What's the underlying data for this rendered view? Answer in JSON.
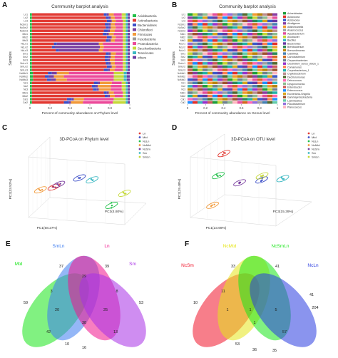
{
  "panels": {
    "A": {
      "label": "A",
      "title": "Community barplot analysis",
      "xlabel": "Percent of community abundance on Phylum level",
      "ylabel": "Samples",
      "ticks": [
        "0",
        "0.2",
        "0.4",
        "0.6",
        "0.8",
        "1"
      ],
      "samples": [
        "Ln1",
        "Ln2",
        "Ln3",
        "NcSm1",
        "NcSm2",
        "NcSm3",
        "Mtd1",
        "Mtd2",
        "Mtd3",
        "NcLn1",
        "NcLn2",
        "NcLn3",
        "Sm1",
        "Sm2",
        "Sm3",
        "SmLn1",
        "SmLn2",
        "SmLn3",
        "NcMtd1",
        "NcMtd2",
        "NcMtd3",
        "Nc1",
        "Nc2",
        "Nc3",
        "Mtd1",
        "Mtd2",
        "Cal1",
        "Cal2"
      ],
      "legend": [
        "Acidobacteria",
        "Actinobacteria",
        "Bacteroidetes",
        "Chloroflexi",
        "Firmicutes",
        "Fusobacteria",
        "Proteobacteria",
        "Saccharibacteria",
        "Tenericutes",
        "others"
      ],
      "colors": [
        "#22c04a",
        "#e23a33",
        "#3d4fc8",
        "#7a3fa0",
        "#f29a3a",
        "#9a9a9a",
        "#ec4a9a",
        "#c6d93a",
        "#3bb8c2",
        "#6b3aa3"
      ]
    },
    "B": {
      "label": "B",
      "title": "Community barplot analysis",
      "xlabel": "Percent of community abundance on Genus level",
      "ylabel": "Samples",
      "ticks": [
        "0",
        "0.2",
        "0.4",
        "0.6",
        "0.8",
        "1"
      ],
      "legend": [
        "Acinetobacter",
        "Acidovorax",
        "Acidovorax",
        "Alcaligenes",
        "Aliishewanella",
        "Anaerococcus",
        "Aquabacterium",
        "Arcobacter",
        "Bacillus",
        "Bacteroides",
        "Brevibacterium",
        "Brevundimonas",
        "Caldilinea",
        "Carnobacterium",
        "Chryseobacterium",
        "Clostridium_sensu_stricto_1",
        "Comamonas",
        "Corynebacterium_1",
        "Cryptobacterium",
        "Dechloromonas",
        "Deinococcus",
        "Dysgonomonas",
        "Enterobacter",
        "Enterococcus",
        "Escherichia-Shigella",
        "Gammaproteobacteria",
        "Lysinibacillus",
        "Paludibacterium",
        "Planococcus"
      ],
      "colors": [
        "#1f9e3a",
        "#e4312b",
        "#3c58c9",
        "#8b3ea3",
        "#f29b2f",
        "#a0a0a0",
        "#e54f9d",
        "#c3d633",
        "#3ab6c0",
        "#6a39a2",
        "#2e8b57",
        "#b8860b",
        "#4682b4",
        "#d2691e",
        "#708090",
        "#9932cc",
        "#ff7f50",
        "#20b2aa",
        "#bc8f8f",
        "#556b2f",
        "#ff69b4",
        "#8fbc8f",
        "#cd5c5c",
        "#1e90ff",
        "#daa520",
        "#a0522d",
        "#66cdaa",
        "#9370db",
        "#ffb6c1"
      ]
    },
    "C": {
      "label": "C",
      "title": "3D-PCoA on Phylum level",
      "axis1": "PC1(58.27%)",
      "axis2": "PC2(33.52%)",
      "axis3": "PC3(4.80%)",
      "legend": [
        "Ln",
        "Mtd",
        "NcLn",
        "NcMtd",
        "NcSm",
        "Sm",
        "SmLn"
      ],
      "colors": [
        "#e23a33",
        "#3d4fc8",
        "#22c04a",
        "#f29a3a",
        "#7a3fa0",
        "#3bb8c2",
        "#c6d93a"
      ]
    },
    "D": {
      "label": "D",
      "title": "3D-PCoA on OTU level",
      "axis1": "PC1(23.69%)",
      "axis2": "PC2(19.48%)",
      "axis3": "PC3(15.39%)",
      "legend": [
        "Ln",
        "Mtd",
        "NcLn",
        "NcMtd",
        "NcSm",
        "Sm",
        "SmLn"
      ],
      "colors": [
        "#e23a33",
        "#3d4fc8",
        "#22c04a",
        "#f29a3a",
        "#7a3fa0",
        "#3bb8c2",
        "#c6d93a"
      ]
    },
    "E": {
      "label": "E",
      "sets": [
        "Mtd",
        "SmLn",
        "Ln",
        "Sm"
      ],
      "set_colors": [
        "#19e619",
        "#3d7cf0",
        "#f0148c",
        "#a830e6"
      ],
      "counts": {
        "only_mtd": "59",
        "only_smln": "37",
        "only_ln": "39",
        "only_sm": "53",
        "smln_ln": "29",
        "mtd_smln": "3",
        "ln_sm": "8",
        "mtd_sm": "16",
        "mtd_smln_ln": "20",
        "smln_ln_sm": "25",
        "center": "38",
        "mtd_ln": "42",
        "smln_sm": "13",
        "mtd_ln_sm": "10"
      }
    },
    "F": {
      "label": "F",
      "sets": [
        "NcSm",
        "NcMtd",
        "NcSmLn",
        "NcLn"
      ],
      "set_colors": [
        "#f0142a",
        "#e6e619",
        "#19e619",
        "#2a3ce0"
      ],
      "counts": {
        "only_ncsm": "10",
        "only_ncmtd": "33",
        "only_ncsmln": "35",
        "only_ncln": "204",
        "ncmtd_ncsmln": "41",
        "ncsm_ncmtd": "11",
        "ncsmln_ncln": "41",
        "ncsm_ncln": "36",
        "ncsm_ncmtd_ncsmln": "1",
        "ncmtd_ncsmln_ncln": "5",
        "center": "1",
        "ncsm_ncsmln": "1",
        "ncmtd_ncln": "57",
        "ncsm_ncsmln_ncln": "53"
      }
    }
  },
  "chart_data": [
    {
      "type": "bar",
      "title": "Community barplot analysis",
      "xlabel": "Percent of community abundance on Phylum level",
      "ylabel": "Samples",
      "xlim": [
        0,
        1
      ],
      "categories": [
        "Ln1",
        "Ln2",
        "Ln3",
        "NcSm1",
        "NcSm2",
        "NcSm3",
        "Mtd1",
        "Mtd2",
        "Mtd3",
        "NcLn1",
        "NcLn2",
        "NcLn3",
        "Sm1",
        "Sm2",
        "Sm3",
        "SmLn1",
        "SmLn2",
        "SmLn3",
        "NcMtd1",
        "NcMtd2",
        "NcMtd3",
        "Nc1",
        "Nc2",
        "Nc3",
        "Mtd1",
        "Mtd2",
        "Cal1",
        "Cal2"
      ],
      "stacked_fractions": [
        [
          0.02,
          0.72,
          0.03,
          0.02,
          0.05,
          0.0,
          0.08,
          0.04,
          0.02,
          0.02
        ],
        [
          0.02,
          0.74,
          0.03,
          0.02,
          0.04,
          0.0,
          0.07,
          0.04,
          0.02,
          0.02
        ],
        [
          0.02,
          0.75,
          0.03,
          0.02,
          0.04,
          0.0,
          0.07,
          0.03,
          0.02,
          0.02
        ],
        [
          0.02,
          0.73,
          0.04,
          0.02,
          0.04,
          0.0,
          0.08,
          0.03,
          0.02,
          0.02
        ],
        [
          0.02,
          0.74,
          0.03,
          0.02,
          0.05,
          0.0,
          0.07,
          0.03,
          0.02,
          0.02
        ],
        [
          0.02,
          0.72,
          0.04,
          0.02,
          0.05,
          0.0,
          0.08,
          0.03,
          0.02,
          0.02
        ],
        [
          0.02,
          0.71,
          0.04,
          0.02,
          0.05,
          0.0,
          0.09,
          0.03,
          0.02,
          0.02
        ],
        [
          0.02,
          0.75,
          0.03,
          0.02,
          0.04,
          0.0,
          0.07,
          0.03,
          0.02,
          0.02
        ],
        [
          0.02,
          0.74,
          0.03,
          0.02,
          0.04,
          0.0,
          0.08,
          0.03,
          0.02,
          0.02
        ],
        [
          0.02,
          0.22,
          0.03,
          0.42,
          0.04,
          0.0,
          0.2,
          0.03,
          0.02,
          0.02
        ],
        [
          0.02,
          0.2,
          0.03,
          0.45,
          0.04,
          0.0,
          0.19,
          0.03,
          0.02,
          0.02
        ],
        [
          0.02,
          0.24,
          0.03,
          0.4,
          0.04,
          0.0,
          0.2,
          0.03,
          0.02,
          0.02
        ],
        [
          0.02,
          0.74,
          0.03,
          0.02,
          0.05,
          0.0,
          0.07,
          0.03,
          0.02,
          0.02
        ],
        [
          0.02,
          0.73,
          0.04,
          0.02,
          0.04,
          0.0,
          0.08,
          0.03,
          0.02,
          0.02
        ],
        [
          0.02,
          0.73,
          0.03,
          0.02,
          0.05,
          0.0,
          0.08,
          0.03,
          0.02,
          0.02
        ],
        [
          0.02,
          0.74,
          0.03,
          0.02,
          0.04,
          0.0,
          0.08,
          0.03,
          0.02,
          0.02
        ],
        [
          0.02,
          0.75,
          0.03,
          0.02,
          0.04,
          0.0,
          0.07,
          0.03,
          0.02,
          0.02
        ],
        [
          0.02,
          0.72,
          0.04,
          0.02,
          0.05,
          0.0,
          0.08,
          0.03,
          0.02,
          0.02
        ],
        [
          0.03,
          0.15,
          0.04,
          0.05,
          0.12,
          0.0,
          0.45,
          0.1,
          0.03,
          0.03
        ],
        [
          0.03,
          0.12,
          0.04,
          0.05,
          0.1,
          0.0,
          0.5,
          0.1,
          0.03,
          0.03
        ],
        [
          0.03,
          0.14,
          0.04,
          0.05,
          0.11,
          0.0,
          0.47,
          0.1,
          0.03,
          0.03
        ],
        [
          0.02,
          0.62,
          0.04,
          0.02,
          0.12,
          0.0,
          0.1,
          0.04,
          0.02,
          0.02
        ],
        [
          0.02,
          0.6,
          0.04,
          0.02,
          0.13,
          0.0,
          0.11,
          0.04,
          0.02,
          0.02
        ],
        [
          0.02,
          0.61,
          0.04,
          0.02,
          0.12,
          0.0,
          0.11,
          0.04,
          0.02,
          0.02
        ],
        [
          0.02,
          0.72,
          0.03,
          0.02,
          0.05,
          0.0,
          0.09,
          0.03,
          0.02,
          0.02
        ],
        [
          0.02,
          0.73,
          0.03,
          0.02,
          0.05,
          0.0,
          0.08,
          0.03,
          0.02,
          0.02
        ],
        [
          0.02,
          0.35,
          0.05,
          0.02,
          0.1,
          0.0,
          0.3,
          0.12,
          0.02,
          0.02
        ],
        [
          0.02,
          0.32,
          0.05,
          0.02,
          0.12,
          0.0,
          0.3,
          0.13,
          0.02,
          0.02
        ]
      ]
    },
    {
      "type": "scatter",
      "title": "3D-PCoA on Phylum level",
      "xlabel": "PC1(58.27%)",
      "ylabel": "PC2(33.52%)",
      "zlabel": "PC3(4.80%)",
      "series": [
        {
          "name": "Ln",
          "points": [
            [
              -0.15,
              -0.05,
              0.0
            ],
            [
              -0.14,
              -0.06,
              0.01
            ],
            [
              -0.16,
              -0.05,
              0.0
            ]
          ]
        },
        {
          "name": "Mtd",
          "points": [
            [
              0.05,
              0.05,
              0.01
            ],
            [
              0.07,
              0.06,
              0.0
            ],
            [
              0.06,
              0.05,
              0.01
            ]
          ]
        },
        {
          "name": "NcLn",
          "points": [
            [
              0.3,
              -0.2,
              0.05
            ],
            [
              0.31,
              -0.22,
              0.04
            ],
            [
              0.3,
              -0.25,
              0.05
            ]
          ]
        },
        {
          "name": "NcMtd",
          "points": [
            [
              -0.25,
              -0.08,
              -0.02
            ],
            [
              -0.26,
              -0.07,
              -0.02
            ],
            [
              -0.24,
              -0.08,
              -0.01
            ]
          ]
        },
        {
          "name": "NcSm",
          "points": [
            [
              -0.12,
              -0.02,
              0.0
            ],
            [
              -0.11,
              -0.03,
              0.0
            ],
            [
              -0.1,
              -0.02,
              0.01
            ]
          ]
        },
        {
          "name": "Sm",
          "points": [
            [
              0.15,
              0.04,
              0.02
            ],
            [
              0.16,
              0.03,
              0.02
            ],
            [
              0.17,
              0.04,
              0.01
            ]
          ]
        },
        {
          "name": "SmLn",
          "points": [
            [
              0.45,
              -0.05,
              -0.02
            ],
            [
              0.46,
              -0.05,
              -0.02
            ],
            [
              0.44,
              -0.04,
              -0.02
            ]
          ]
        }
      ]
    },
    {
      "type": "scatter",
      "title": "3D-PCoA on OTU level",
      "xlabel": "PC1(23.69%)",
      "ylabel": "PC2(19.48%)",
      "zlabel": "PC3(15.39%)",
      "series": [
        {
          "name": "Ln",
          "points": [
            [
              -0.2,
              0.2,
              0.1
            ],
            [
              -0.21,
              0.18,
              0.1
            ],
            [
              -0.2,
              0.19,
              0.11
            ]
          ]
        },
        {
          "name": "Mtd",
          "points": [
            [
              0.2,
              0.0,
              0.05
            ],
            [
              0.21,
              0.01,
              0.05
            ],
            [
              0.2,
              0.02,
              0.06
            ]
          ]
        },
        {
          "name": "NcLn",
          "points": [
            [
              -0.15,
              0.05,
              0.0
            ],
            [
              -0.16,
              0.06,
              0.0
            ],
            [
              -0.14,
              0.05,
              0.01
            ]
          ]
        },
        {
          "name": "NcMtd",
          "points": [
            [
              -0.15,
              -0.2,
              -0.05
            ],
            [
              -0.16,
              -0.21,
              -0.05
            ],
            [
              -0.14,
              -0.2,
              -0.04
            ]
          ]
        },
        {
          "name": "NcSm",
          "points": [
            [
              0.05,
              0.0,
              0.0
            ],
            [
              0.06,
              0.01,
              0.0
            ],
            [
              0.04,
              0.0,
              0.01
            ]
          ]
        },
        {
          "name": "Sm",
          "points": [
            [
              0.35,
              0.0,
              0.1
            ],
            [
              0.36,
              0.0,
              0.1
            ],
            [
              0.34,
              0.01,
              0.1
            ]
          ]
        },
        {
          "name": "SmLn",
          "points": [
            [
              0.2,
              0.05,
              0.05
            ],
            [
              0.21,
              0.05,
              0.05
            ],
            [
              0.22,
              0.06,
              0.05
            ]
          ]
        }
      ]
    }
  ]
}
